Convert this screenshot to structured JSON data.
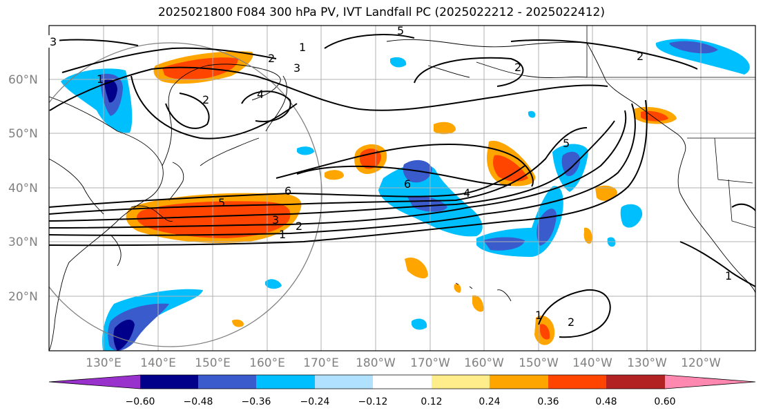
{
  "title": "2025021800 F084 300 hPa PV, IVT Landfall PC (2025022212 - 2025022412)",
  "lat_labels": [
    "60°N",
    "50°N",
    "40°N",
    "30°N",
    "20°N"
  ],
  "lon_labels": [
    "130°E",
    "140°E",
    "150°E",
    "160°E",
    "170°E",
    "180°W",
    "170°W",
    "160°W",
    "150°W",
    "140°W",
    "130°W",
    "120°W"
  ],
  "colorbar": {
    "colors": [
      "#9932cc",
      "#00008b",
      "#3a5bcc",
      "#00bfff",
      "#b0e2ff",
      "#ffffff",
      "#ffec8b",
      "#ffa500",
      "#ff4500",
      "#b22222",
      "#ff88b0"
    ],
    "tick_labels": [
      "−0.60",
      "−0.48",
      "−0.36",
      "−0.24",
      "−0.12",
      "0.12",
      "0.24",
      "0.36",
      "0.48",
      "0.60"
    ]
  },
  "contour_labels": [
    "3",
    "1",
    "2",
    "3",
    "5",
    "2",
    "4",
    "2",
    "1",
    "2",
    "6",
    "5",
    "3",
    "2",
    "1",
    "6",
    "4",
    "5",
    "1",
    "2",
    "1"
  ],
  "colors": {
    "land_line": "#000000",
    "grid": "#b0b0b0",
    "circle": "#808080"
  }
}
